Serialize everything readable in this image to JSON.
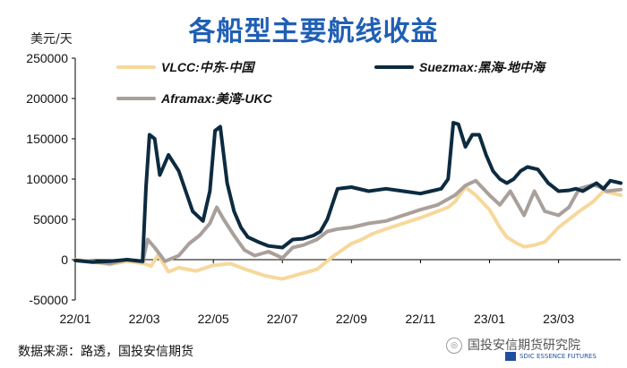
{
  "chart_data": {
    "type": "line",
    "title": "各船型主要航线收益",
    "ylabel": "美元/天",
    "ylim": [
      -50000,
      250000
    ],
    "yticks": [
      -50000,
      0,
      50000,
      100000,
      150000,
      200000,
      250000
    ],
    "ytick_labels": [
      "-50000",
      "0",
      "50000",
      "100000",
      "150000",
      "200000",
      "250000"
    ],
    "xlim": [
      0,
      15.8
    ],
    "xticks": [
      0,
      2,
      4,
      6,
      8,
      10,
      12,
      14
    ],
    "xtick_labels": [
      "22/01",
      "22/03",
      "22/05",
      "22/07",
      "22/09",
      "22/11",
      "23/01",
      "23/03"
    ],
    "source": "数据来源：路透，国投安信期货",
    "series": [
      {
        "name": "VLCC:中东-中国",
        "color": "#f7d89c",
        "x": [
          0,
          0.5,
          1.0,
          1.5,
          2.0,
          2.2,
          2.4,
          2.7,
          3.0,
          3.5,
          4.0,
          4.5,
          5.0,
          5.5,
          6.0,
          6.5,
          7.0,
          7.5,
          8.0,
          8.3,
          8.6,
          9.0,
          9.5,
          10.0,
          10.5,
          10.8,
          11.0,
          11.3,
          11.6,
          12.0,
          12.3,
          12.5,
          12.8,
          13.0,
          13.3,
          13.6,
          14.0,
          14.3,
          14.6,
          15.0,
          15.3,
          15.8
        ],
        "values": [
          0,
          -3000,
          -6000,
          -2000,
          -5000,
          -8000,
          6000,
          -15000,
          -10000,
          -14000,
          -7000,
          -5000,
          -13000,
          -20000,
          -24000,
          -18000,
          -12000,
          5000,
          20000,
          25000,
          32000,
          38000,
          45000,
          52000,
          60000,
          65000,
          72000,
          90000,
          80000,
          62000,
          40000,
          28000,
          20000,
          16000,
          18000,
          22000,
          40000,
          50000,
          60000,
          72000,
          85000,
          80000
        ]
      },
      {
        "name": "Suezmax:黑海-地中海",
        "color": "#0d2b40",
        "x": [
          0,
          0.5,
          1.0,
          1.5,
          1.95,
          2.05,
          2.15,
          2.3,
          2.45,
          2.7,
          3.0,
          3.4,
          3.7,
          3.9,
          4.05,
          4.2,
          4.4,
          4.6,
          4.8,
          5.0,
          5.3,
          5.6,
          6.0,
          6.3,
          6.6,
          6.9,
          7.1,
          7.3,
          7.6,
          8.0,
          8.5,
          9.0,
          9.5,
          10.0,
          10.3,
          10.6,
          10.8,
          10.95,
          11.1,
          11.3,
          11.5,
          11.7,
          11.9,
          12.1,
          12.3,
          12.5,
          12.7,
          12.9,
          13.1,
          13.4,
          13.7,
          14.0,
          14.3,
          14.5,
          14.7,
          14.9,
          15.1,
          15.3,
          15.5,
          15.8
        ],
        "values": [
          -1000,
          -3000,
          -2000,
          0,
          -2000,
          90000,
          155000,
          150000,
          105000,
          130000,
          110000,
          60000,
          48000,
          85000,
          160000,
          165000,
          95000,
          60000,
          40000,
          28000,
          22000,
          17000,
          15000,
          25000,
          26000,
          30000,
          35000,
          50000,
          88000,
          90000,
          85000,
          88000,
          85000,
          82000,
          85000,
          88000,
          100000,
          170000,
          168000,
          140000,
          155000,
          155000,
          130000,
          110000,
          100000,
          95000,
          100000,
          110000,
          115000,
          112000,
          95000,
          85000,
          86000,
          88000,
          85000,
          90000,
          95000,
          88000,
          98000,
          95000
        ]
      },
      {
        "name": "Aframax:美湾-UKC",
        "color": "#a9a09b",
        "x": [
          0,
          0.5,
          1.0,
          1.5,
          1.95,
          2.1,
          2.3,
          2.6,
          3.0,
          3.3,
          3.6,
          3.9,
          4.1,
          4.3,
          4.6,
          4.9,
          5.2,
          5.6,
          6.0,
          6.3,
          6.6,
          7.0,
          7.3,
          7.6,
          8.0,
          8.5,
          9.0,
          9.5,
          10.0,
          10.5,
          11.0,
          11.3,
          11.6,
          12.0,
          12.3,
          12.6,
          12.8,
          13.0,
          13.3,
          13.6,
          14.0,
          14.3,
          14.6,
          15.0,
          15.2,
          15.4,
          15.8
        ],
        "values": [
          -1000,
          -2000,
          -5000,
          0,
          -3000,
          25000,
          15000,
          -2000,
          5000,
          20000,
          30000,
          45000,
          65000,
          50000,
          30000,
          12000,
          5000,
          10000,
          2000,
          15000,
          18000,
          25000,
          35000,
          38000,
          40000,
          45000,
          48000,
          55000,
          62000,
          68000,
          80000,
          92000,
          98000,
          80000,
          68000,
          85000,
          70000,
          55000,
          85000,
          60000,
          55000,
          65000,
          88000,
          93000,
          90000,
          85000,
          87000
        ]
      }
    ]
  },
  "watermark": {
    "text": "国投安信期货研究院",
    "sub": "SDIC ESSENCE FUTURES"
  }
}
